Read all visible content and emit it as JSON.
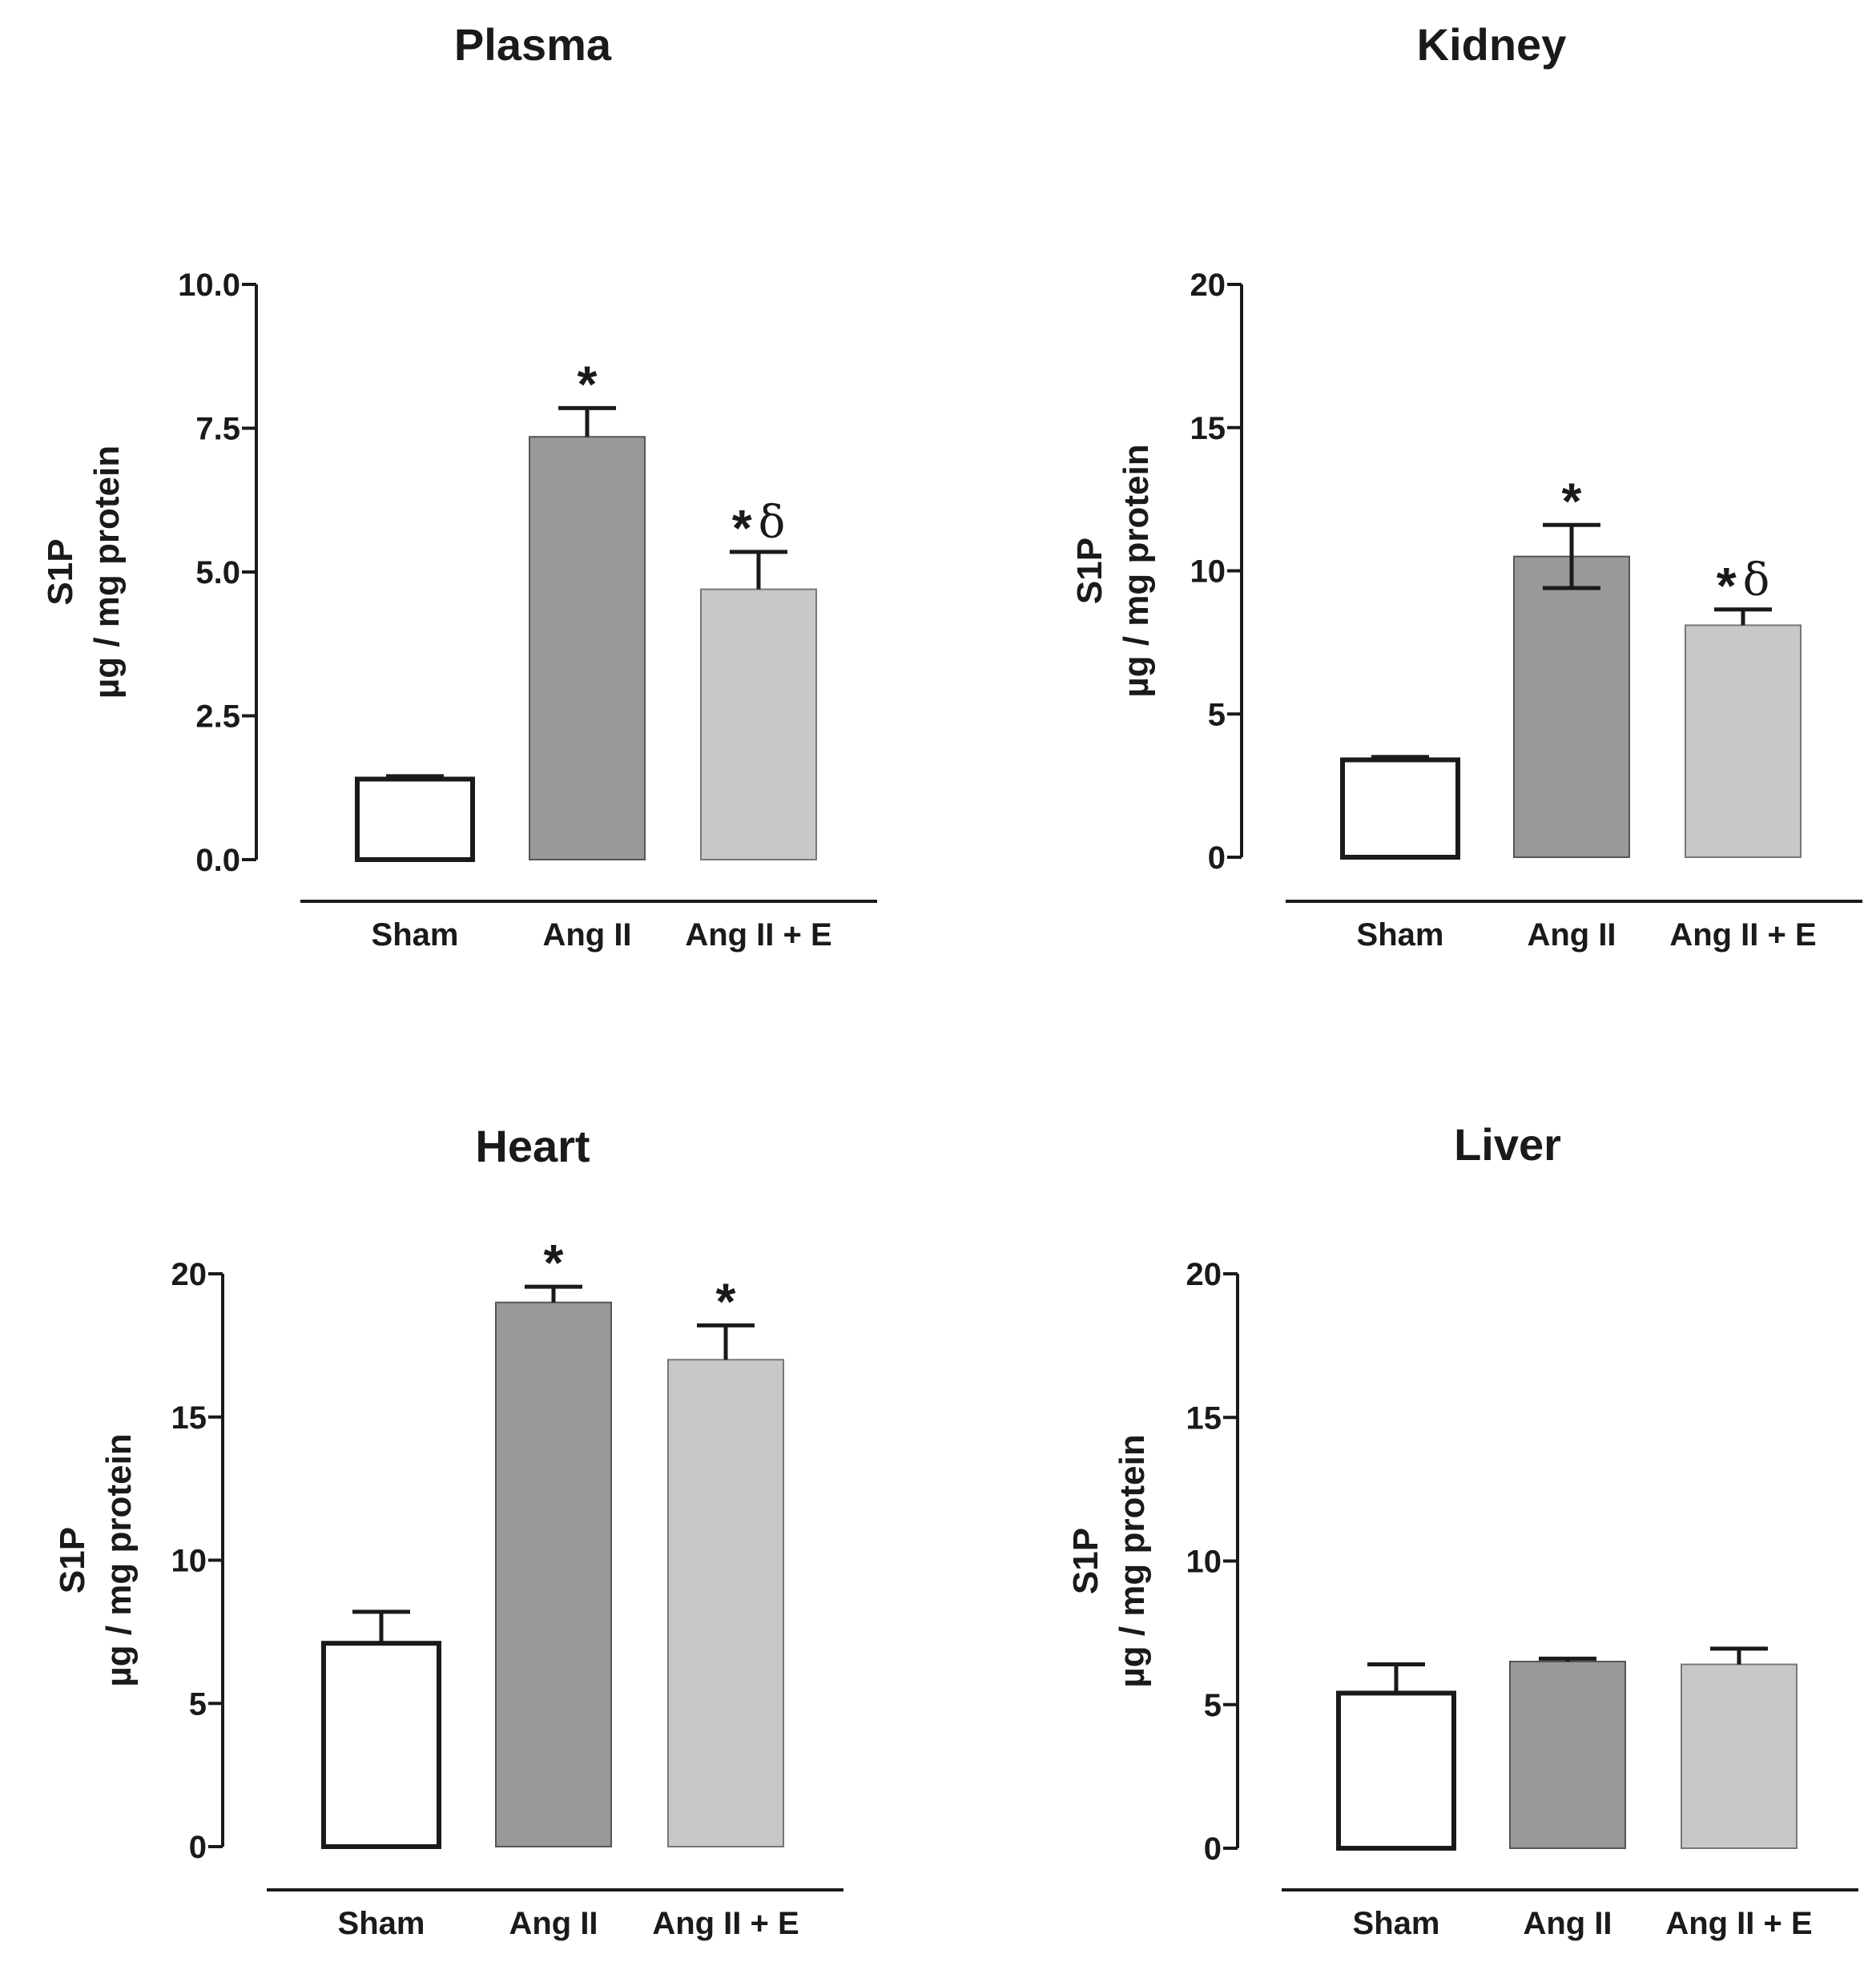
{
  "colors": {
    "sham": "#ffffff",
    "ang_ii": "#999999",
    "ang_ii_e": "#c8c8c8",
    "ink": "#1a1a1a"
  },
  "chart_data": [
    {
      "type": "bar",
      "title": "Plasma",
      "ylabel_line1": "S1P",
      "ylabel_line2": "µg / mg protein",
      "ylim": [
        0,
        10
      ],
      "yticks": [
        "0.0",
        "2.5",
        "5.0",
        "7.5",
        "10.0"
      ],
      "ytick_values": [
        0,
        2.5,
        5,
        7.5,
        10
      ],
      "categories": [
        "Sham",
        "Ang II",
        "Ang II + E"
      ],
      "values": [
        1.4,
        7.35,
        4.7
      ],
      "errors": [
        0.05,
        0.5,
        0.65
      ],
      "error_mode": [
        "up",
        "up",
        "up"
      ],
      "annotations": [
        "",
        "*",
        "*δ"
      ]
    },
    {
      "type": "bar",
      "title": "Kidney",
      "ylabel_line1": "S1P",
      "ylabel_line2": "µg / mg protein",
      "ylim": [
        0,
        20
      ],
      "yticks": [
        "0",
        "5",
        "10",
        "15",
        "20"
      ],
      "ytick_values": [
        0,
        5,
        10,
        15,
        20
      ],
      "categories": [
        "Sham",
        "Ang II",
        "Ang II + E"
      ],
      "values": [
        3.4,
        10.5,
        8.1
      ],
      "errors": [
        0.1,
        1.1,
        0.55
      ],
      "error_mode": [
        "up",
        "both",
        "up"
      ],
      "annotations": [
        "",
        "*",
        "*δ"
      ]
    },
    {
      "type": "bar",
      "title": "Heart",
      "ylabel_line1": "S1P",
      "ylabel_line2": "µg / mg protein",
      "ylim": [
        0,
        20
      ],
      "yticks": [
        "0",
        "5",
        "10",
        "15",
        "20"
      ],
      "ytick_values": [
        0,
        5,
        10,
        15,
        20
      ],
      "categories": [
        "Sham",
        "Ang II",
        "Ang II + E"
      ],
      "values": [
        7.1,
        19.0,
        17.0
      ],
      "errors": [
        1.1,
        0.55,
        1.2
      ],
      "error_mode": [
        "up",
        "up",
        "up"
      ],
      "annotations": [
        "",
        "*",
        "*"
      ]
    },
    {
      "type": "bar",
      "title": "Liver",
      "ylabel_line1": "S1P",
      "ylabel_line2": "µg / mg protein",
      "ylim": [
        0,
        20
      ],
      "yticks": [
        "0",
        "5",
        "10",
        "15",
        "20"
      ],
      "ytick_values": [
        0,
        5,
        10,
        15,
        20
      ],
      "categories": [
        "Sham",
        "Ang II",
        "Ang II + E"
      ],
      "values": [
        5.4,
        6.5,
        6.4
      ],
      "errors": [
        1.0,
        0.1,
        0.55
      ],
      "error_mode": [
        "up",
        "up",
        "up"
      ],
      "annotations": [
        "",
        "",
        ""
      ]
    }
  ]
}
